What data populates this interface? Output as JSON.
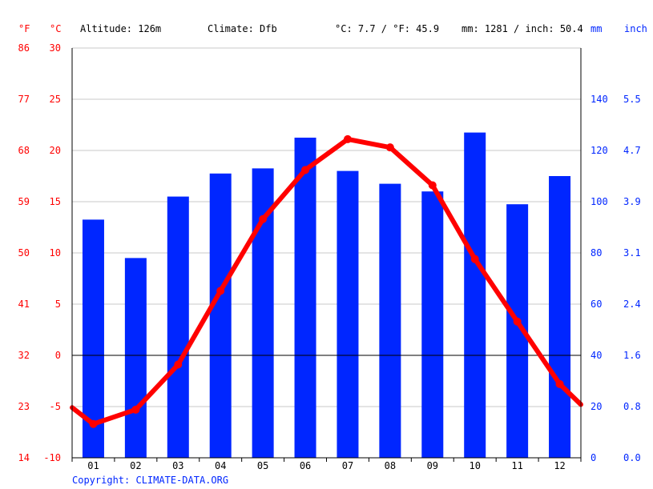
{
  "header": {
    "unit_f": "°F",
    "unit_c": "°C",
    "altitude": "Altitude: 126m",
    "climate": "Climate: Dfb",
    "temp_summary": "°C: 7.7 / °F: 45.9",
    "precip_summary": "mm: 1281 / inch: 50.4",
    "unit_mm": "mm",
    "unit_inch": "inch"
  },
  "footer": {
    "copyright": "Copyright: CLIMATE-DATA.ORG"
  },
  "colors": {
    "temperature": "#ff0000",
    "precipitation": "#0026ff",
    "grid": "#c8c8c8",
    "zero_line": "#000000"
  },
  "chart_data": {
    "type": "bar",
    "categories": [
      "01",
      "02",
      "03",
      "04",
      "05",
      "06",
      "07",
      "08",
      "09",
      "10",
      "11",
      "12"
    ],
    "series": [
      {
        "type": "bar",
        "axis": "precip",
        "values": [
          93,
          78,
          102,
          111,
          113,
          125,
          112,
          107,
          104,
          127,
          99,
          110
        ]
      },
      {
        "type": "line",
        "axis": "temp",
        "values": [
          -6.7,
          -5.3,
          -0.9,
          6.3,
          13.3,
          18.1,
          21.1,
          20.3,
          16.6,
          9.4,
          3.3,
          -2.8
        ],
        "edge_values": [
          -5.1,
          -4.8
        ]
      }
    ],
    "axes": {
      "temp_c": {
        "min": -10,
        "max": 30,
        "ticks": [
          -10,
          -5,
          0,
          5,
          10,
          15,
          20,
          25,
          30
        ]
      },
      "temp_f": {
        "ticks": [
          14,
          23,
          32,
          41,
          50,
          59,
          68,
          77,
          86
        ]
      },
      "precip_mm": {
        "min": 0,
        "max": 160,
        "ticks": [
          0,
          20,
          40,
          60,
          80,
          100,
          120,
          140
        ]
      },
      "precip_inch": {
        "ticks": [
          "0.0",
          "0.8",
          "1.6",
          "2.4",
          "3.1",
          "3.9",
          "4.7",
          "5.5"
        ]
      }
    },
    "grid": true
  }
}
